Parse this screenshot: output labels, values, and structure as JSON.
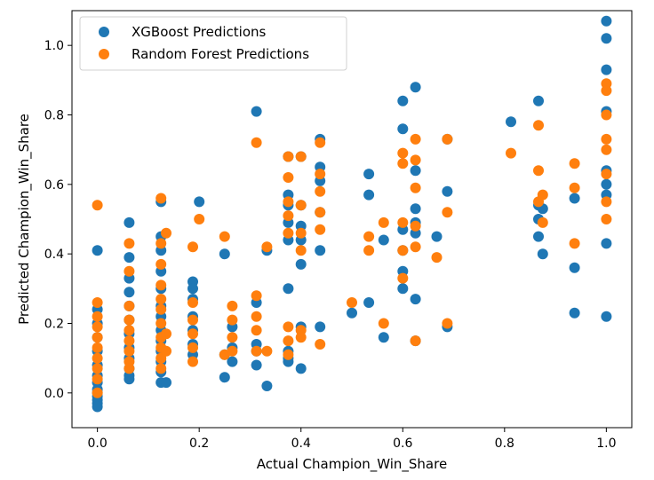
{
  "chart_data": {
    "type": "scatter",
    "title": "",
    "xlabel": "Actual Champion_Win_Share",
    "ylabel": "Predicted Champion_Win_Share",
    "xlim": [
      -0.05,
      1.05
    ],
    "ylim": [
      -0.1,
      1.1
    ],
    "xticks": [
      0.0,
      0.2,
      0.4,
      0.6,
      0.8,
      1.0
    ],
    "yticks": [
      0.0,
      0.2,
      0.4,
      0.6,
      0.8,
      1.0
    ],
    "xtick_labels": [
      "0.0",
      "0.2",
      "0.4",
      "0.6",
      "0.8",
      "1.0"
    ],
    "ytick_labels": [
      "0.0",
      "0.2",
      "0.4",
      "0.6",
      "0.8",
      "1.0"
    ],
    "grid": false,
    "legend_position": "top-left",
    "series": [
      {
        "name": "XGBoost Predictions",
        "color": "#1f77b4",
        "points": [
          [
            0.0,
            0.41
          ],
          [
            0.0,
            0.24
          ],
          [
            0.0,
            0.2
          ],
          [
            0.0,
            0.16
          ],
          [
            0.0,
            0.12
          ],
          [
            0.0,
            0.08
          ],
          [
            0.0,
            0.05
          ],
          [
            0.0,
            0.03
          ],
          [
            0.0,
            0.01
          ],
          [
            0.0,
            -0.01
          ],
          [
            0.0,
            -0.02
          ],
          [
            0.0,
            -0.03
          ],
          [
            0.0,
            -0.04
          ],
          [
            0.0,
            0.0
          ],
          [
            0.0625,
            0.49
          ],
          [
            0.0625,
            0.39
          ],
          [
            0.0625,
            0.33
          ],
          [
            0.0625,
            0.29
          ],
          [
            0.0625,
            0.25
          ],
          [
            0.0625,
            0.21
          ],
          [
            0.0625,
            0.17
          ],
          [
            0.0625,
            0.13
          ],
          [
            0.0625,
            0.1
          ],
          [
            0.0625,
            0.07
          ],
          [
            0.0625,
            0.05
          ],
          [
            0.0625,
            0.04
          ],
          [
            0.125,
            0.55
          ],
          [
            0.125,
            0.45
          ],
          [
            0.125,
            0.41
          ],
          [
            0.125,
            0.35
          ],
          [
            0.125,
            0.3
          ],
          [
            0.125,
            0.25
          ],
          [
            0.125,
            0.22
          ],
          [
            0.125,
            0.18
          ],
          [
            0.125,
            0.15
          ],
          [
            0.125,
            0.12
          ],
          [
            0.125,
            0.09
          ],
          [
            0.125,
            0.06
          ],
          [
            0.125,
            0.03
          ],
          [
            0.135,
            0.03
          ],
          [
            0.1875,
            0.32
          ],
          [
            0.1875,
            0.3
          ],
          [
            0.1875,
            0.27
          ],
          [
            0.1875,
            0.22
          ],
          [
            0.1875,
            0.18
          ],
          [
            0.1875,
            0.14
          ],
          [
            0.1875,
            0.11
          ],
          [
            0.2,
            0.55
          ],
          [
            0.25,
            0.4
          ],
          [
            0.25,
            0.045
          ],
          [
            0.25,
            0.11
          ],
          [
            0.265,
            0.09
          ],
          [
            0.265,
            0.13
          ],
          [
            0.265,
            0.19
          ],
          [
            0.3125,
            0.81
          ],
          [
            0.3125,
            0.26
          ],
          [
            0.3125,
            0.14
          ],
          [
            0.3125,
            0.08
          ],
          [
            0.3125,
            0.12
          ],
          [
            0.333,
            0.41
          ],
          [
            0.333,
            0.02
          ],
          [
            0.375,
            0.68
          ],
          [
            0.375,
            0.57
          ],
          [
            0.375,
            0.54
          ],
          [
            0.375,
            0.49
          ],
          [
            0.375,
            0.44
          ],
          [
            0.375,
            0.3
          ],
          [
            0.375,
            0.12
          ],
          [
            0.375,
            0.1
          ],
          [
            0.375,
            0.09
          ],
          [
            0.4,
            0.68
          ],
          [
            0.4,
            0.54
          ],
          [
            0.4,
            0.48
          ],
          [
            0.4,
            0.44
          ],
          [
            0.4,
            0.37
          ],
          [
            0.4,
            0.19
          ],
          [
            0.4,
            0.07
          ],
          [
            0.4375,
            0.73
          ],
          [
            0.4375,
            0.65
          ],
          [
            0.4375,
            0.61
          ],
          [
            0.4375,
            0.52
          ],
          [
            0.4375,
            0.41
          ],
          [
            0.4375,
            0.19
          ],
          [
            0.5,
            0.23
          ],
          [
            0.5333,
            0.63
          ],
          [
            0.5333,
            0.57
          ],
          [
            0.5333,
            0.26
          ],
          [
            0.5625,
            0.44
          ],
          [
            0.5625,
            0.16
          ],
          [
            0.6,
            0.84
          ],
          [
            0.6,
            0.76
          ],
          [
            0.6,
            0.47
          ],
          [
            0.6,
            0.41
          ],
          [
            0.6,
            0.35
          ],
          [
            0.6,
            0.3
          ],
          [
            0.625,
            0.88
          ],
          [
            0.625,
            0.64
          ],
          [
            0.625,
            0.53
          ],
          [
            0.625,
            0.49
          ],
          [
            0.625,
            0.46
          ],
          [
            0.625,
            0.27
          ],
          [
            0.625,
            0.15
          ],
          [
            0.6667,
            0.45
          ],
          [
            0.6875,
            0.73
          ],
          [
            0.6875,
            0.58
          ],
          [
            0.6875,
            0.19
          ],
          [
            0.8125,
            0.78
          ],
          [
            0.8667,
            0.84
          ],
          [
            0.8667,
            0.54
          ],
          [
            0.8667,
            0.5
          ],
          [
            0.8667,
            0.45
          ],
          [
            0.875,
            0.53
          ],
          [
            0.875,
            0.4
          ],
          [
            0.9375,
            0.56
          ],
          [
            0.9375,
            0.36
          ],
          [
            0.9375,
            0.23
          ],
          [
            1.0,
            1.07
          ],
          [
            1.0,
            1.02
          ],
          [
            1.0,
            0.93
          ],
          [
            1.0,
            0.81
          ],
          [
            1.0,
            0.64
          ],
          [
            1.0,
            0.6
          ],
          [
            1.0,
            0.57
          ],
          [
            1.0,
            0.43
          ],
          [
            1.0,
            0.22
          ]
        ]
      },
      {
        "name": "Random Forest Predictions",
        "color": "#ff7f0e",
        "points": [
          [
            0.0,
            0.54
          ],
          [
            0.0,
            0.26
          ],
          [
            0.0,
            0.22
          ],
          [
            0.0,
            0.19
          ],
          [
            0.0,
            0.16
          ],
          [
            0.0,
            0.13
          ],
          [
            0.0,
            0.1
          ],
          [
            0.0,
            0.07
          ],
          [
            0.0,
            0.04
          ],
          [
            0.0,
            0.0
          ],
          [
            0.0625,
            0.43
          ],
          [
            0.0625,
            0.35
          ],
          [
            0.0625,
            0.25
          ],
          [
            0.0625,
            0.21
          ],
          [
            0.0625,
            0.18
          ],
          [
            0.0625,
            0.15
          ],
          [
            0.0625,
            0.12
          ],
          [
            0.0625,
            0.09
          ],
          [
            0.0625,
            0.07
          ],
          [
            0.125,
            0.56
          ],
          [
            0.125,
            0.43
          ],
          [
            0.125,
            0.37
          ],
          [
            0.125,
            0.31
          ],
          [
            0.125,
            0.27
          ],
          [
            0.125,
            0.24
          ],
          [
            0.125,
            0.2
          ],
          [
            0.125,
            0.16
          ],
          [
            0.125,
            0.13
          ],
          [
            0.125,
            0.1
          ],
          [
            0.125,
            0.07
          ],
          [
            0.135,
            0.46
          ],
          [
            0.135,
            0.17
          ],
          [
            0.135,
            0.12
          ],
          [
            0.1875,
            0.42
          ],
          [
            0.1875,
            0.26
          ],
          [
            0.1875,
            0.21
          ],
          [
            0.1875,
            0.17
          ],
          [
            0.1875,
            0.13
          ],
          [
            0.1875,
            0.09
          ],
          [
            0.2,
            0.5
          ],
          [
            0.25,
            0.45
          ],
          [
            0.25,
            0.11
          ],
          [
            0.265,
            0.25
          ],
          [
            0.265,
            0.21
          ],
          [
            0.265,
            0.16
          ],
          [
            0.265,
            0.12
          ],
          [
            0.3125,
            0.72
          ],
          [
            0.3125,
            0.28
          ],
          [
            0.3125,
            0.22
          ],
          [
            0.3125,
            0.18
          ],
          [
            0.3125,
            0.12
          ],
          [
            0.333,
            0.42
          ],
          [
            0.333,
            0.12
          ],
          [
            0.375,
            0.68
          ],
          [
            0.375,
            0.62
          ],
          [
            0.375,
            0.55
          ],
          [
            0.375,
            0.51
          ],
          [
            0.375,
            0.46
          ],
          [
            0.375,
            0.19
          ],
          [
            0.375,
            0.15
          ],
          [
            0.375,
            0.11
          ],
          [
            0.4,
            0.68
          ],
          [
            0.4,
            0.54
          ],
          [
            0.4,
            0.46
          ],
          [
            0.4,
            0.41
          ],
          [
            0.4,
            0.18
          ],
          [
            0.4,
            0.16
          ],
          [
            0.4375,
            0.72
          ],
          [
            0.4375,
            0.63
          ],
          [
            0.4375,
            0.58
          ],
          [
            0.4375,
            0.52
          ],
          [
            0.4375,
            0.47
          ],
          [
            0.4375,
            0.14
          ],
          [
            0.5,
            0.26
          ],
          [
            0.5333,
            0.45
          ],
          [
            0.5333,
            0.41
          ],
          [
            0.5625,
            0.49
          ],
          [
            0.5625,
            0.2
          ],
          [
            0.6,
            0.69
          ],
          [
            0.6,
            0.66
          ],
          [
            0.6,
            0.49
          ],
          [
            0.6,
            0.41
          ],
          [
            0.6,
            0.33
          ],
          [
            0.625,
            0.73
          ],
          [
            0.625,
            0.67
          ],
          [
            0.625,
            0.59
          ],
          [
            0.625,
            0.48
          ],
          [
            0.625,
            0.42
          ],
          [
            0.625,
            0.15
          ],
          [
            0.6667,
            0.39
          ],
          [
            0.6875,
            0.73
          ],
          [
            0.6875,
            0.52
          ],
          [
            0.6875,
            0.2
          ],
          [
            0.8125,
            0.69
          ],
          [
            0.8667,
            0.77
          ],
          [
            0.8667,
            0.64
          ],
          [
            0.8667,
            0.55
          ],
          [
            0.875,
            0.57
          ],
          [
            0.875,
            0.49
          ],
          [
            0.9375,
            0.66
          ],
          [
            0.9375,
            0.59
          ],
          [
            0.9375,
            0.43
          ],
          [
            1.0,
            0.89
          ],
          [
            1.0,
            0.87
          ],
          [
            1.0,
            0.8
          ],
          [
            1.0,
            0.73
          ],
          [
            1.0,
            0.7
          ],
          [
            1.0,
            0.63
          ],
          [
            1.0,
            0.55
          ],
          [
            1.0,
            0.5
          ]
        ]
      }
    ]
  }
}
